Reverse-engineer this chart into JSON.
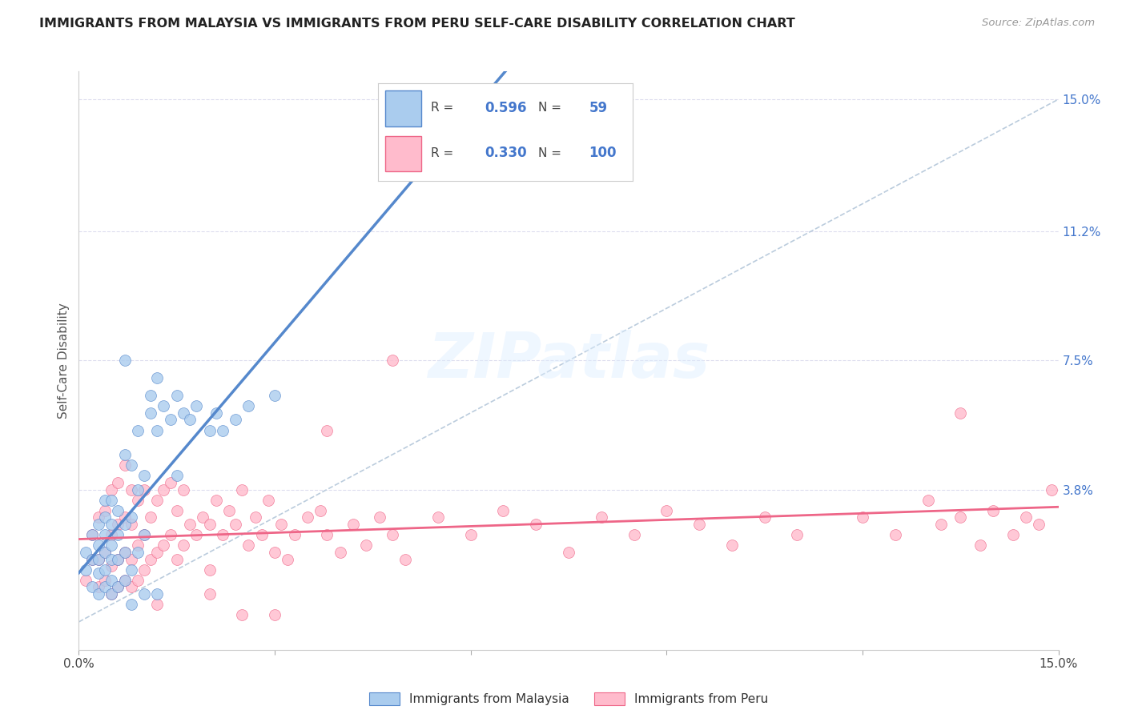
{
  "title": "IMMIGRANTS FROM MALAYSIA VS IMMIGRANTS FROM PERU SELF-CARE DISABILITY CORRELATION CHART",
  "source": "Source: ZipAtlas.com",
  "ylabel": "Self-Care Disability",
  "right_ytick_vals": [
    0.0,
    0.038,
    0.075,
    0.112,
    0.15
  ],
  "right_ytick_labels": [
    "",
    "3.8%",
    "7.5%",
    "11.2%",
    "15.0%"
  ],
  "xlim": [
    0.0,
    0.15
  ],
  "ylim": [
    -0.008,
    0.158
  ],
  "malaysia_color": "#5588CC",
  "malaysia_fill": "#AACCEE",
  "peru_color": "#EE6688",
  "peru_fill": "#FFBBCC",
  "malaysia_R": 0.596,
  "malaysia_N": 59,
  "peru_R": 0.33,
  "peru_N": 100,
  "diagonal_color": "#BBCCDD",
  "grid_color": "#DDDDEE",
  "background_color": "#FFFFFF",
  "malaysia_x": [
    0.001,
    0.001,
    0.002,
    0.002,
    0.002,
    0.003,
    0.003,
    0.003,
    0.003,
    0.003,
    0.004,
    0.004,
    0.004,
    0.004,
    0.004,
    0.004,
    0.005,
    0.005,
    0.005,
    0.005,
    0.005,
    0.005,
    0.006,
    0.006,
    0.006,
    0.006,
    0.007,
    0.007,
    0.007,
    0.007,
    0.008,
    0.008,
    0.009,
    0.009,
    0.01,
    0.01,
    0.011,
    0.011,
    0.012,
    0.012,
    0.013,
    0.014,
    0.015,
    0.016,
    0.017,
    0.018,
    0.02,
    0.021,
    0.022,
    0.024,
    0.026,
    0.03,
    0.015,
    0.009,
    0.008,
    0.008,
    0.01,
    0.012,
    0.007
  ],
  "malaysia_y": [
    0.015,
    0.02,
    0.01,
    0.018,
    0.025,
    0.008,
    0.014,
    0.018,
    0.022,
    0.028,
    0.01,
    0.015,
    0.02,
    0.025,
    0.03,
    0.035,
    0.008,
    0.012,
    0.018,
    0.022,
    0.028,
    0.035,
    0.01,
    0.018,
    0.025,
    0.032,
    0.012,
    0.02,
    0.028,
    0.048,
    0.015,
    0.03,
    0.02,
    0.038,
    0.025,
    0.042,
    0.06,
    0.065,
    0.055,
    0.07,
    0.062,
    0.058,
    0.065,
    0.06,
    0.058,
    0.062,
    0.055,
    0.06,
    0.055,
    0.058,
    0.062,
    0.065,
    0.042,
    0.055,
    0.045,
    0.005,
    0.008,
    0.008,
    0.075
  ],
  "peru_x": [
    0.001,
    0.002,
    0.002,
    0.003,
    0.003,
    0.003,
    0.004,
    0.004,
    0.004,
    0.005,
    0.005,
    0.005,
    0.005,
    0.006,
    0.006,
    0.006,
    0.006,
    0.007,
    0.007,
    0.007,
    0.007,
    0.008,
    0.008,
    0.008,
    0.008,
    0.009,
    0.009,
    0.009,
    0.01,
    0.01,
    0.01,
    0.011,
    0.011,
    0.012,
    0.012,
    0.013,
    0.013,
    0.014,
    0.014,
    0.015,
    0.015,
    0.016,
    0.016,
    0.017,
    0.018,
    0.019,
    0.02,
    0.02,
    0.021,
    0.022,
    0.023,
    0.024,
    0.025,
    0.026,
    0.027,
    0.028,
    0.029,
    0.03,
    0.031,
    0.032,
    0.033,
    0.035,
    0.037,
    0.038,
    0.04,
    0.042,
    0.044,
    0.046,
    0.048,
    0.05,
    0.055,
    0.06,
    0.065,
    0.07,
    0.075,
    0.08,
    0.085,
    0.09,
    0.095,
    0.1,
    0.105,
    0.11,
    0.12,
    0.125,
    0.13,
    0.132,
    0.135,
    0.138,
    0.14,
    0.143,
    0.145,
    0.147,
    0.149,
    0.135,
    0.048,
    0.038,
    0.02,
    0.012,
    0.025,
    0.03
  ],
  "peru_y": [
    0.012,
    0.018,
    0.025,
    0.01,
    0.018,
    0.03,
    0.012,
    0.02,
    0.032,
    0.008,
    0.016,
    0.025,
    0.038,
    0.01,
    0.018,
    0.028,
    0.04,
    0.012,
    0.02,
    0.03,
    0.045,
    0.01,
    0.018,
    0.028,
    0.038,
    0.012,
    0.022,
    0.035,
    0.015,
    0.025,
    0.038,
    0.018,
    0.03,
    0.02,
    0.035,
    0.022,
    0.038,
    0.025,
    0.04,
    0.018,
    0.032,
    0.022,
    0.038,
    0.028,
    0.025,
    0.03,
    0.015,
    0.028,
    0.035,
    0.025,
    0.032,
    0.028,
    0.038,
    0.022,
    0.03,
    0.025,
    0.035,
    0.02,
    0.028,
    0.018,
    0.025,
    0.03,
    0.032,
    0.025,
    0.02,
    0.028,
    0.022,
    0.03,
    0.025,
    0.018,
    0.03,
    0.025,
    0.032,
    0.028,
    0.02,
    0.03,
    0.025,
    0.032,
    0.028,
    0.022,
    0.03,
    0.025,
    0.03,
    0.025,
    0.035,
    0.028,
    0.03,
    0.022,
    0.032,
    0.025,
    0.03,
    0.028,
    0.038,
    0.06,
    0.075,
    0.055,
    0.008,
    0.005,
    0.002,
    0.002
  ]
}
